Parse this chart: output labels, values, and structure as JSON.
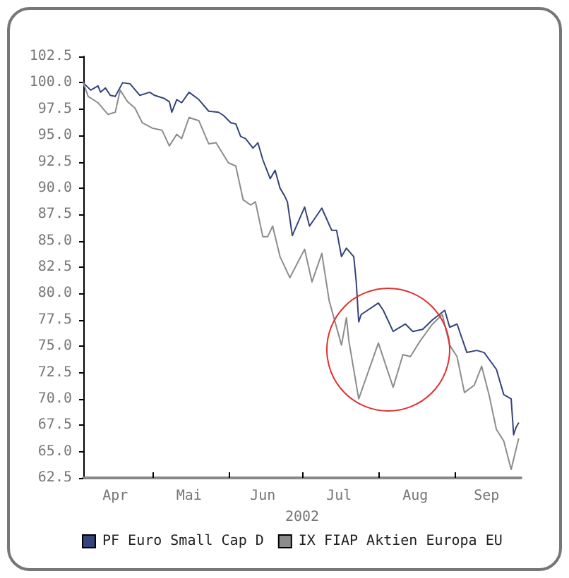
{
  "chart_data": {
    "type": "line",
    "xlabel": "2002",
    "x": [
      "2002-04-03",
      "2002-04-06",
      "2002-04-09",
      "2002-04-10",
      "2002-04-12",
      "2002-04-14",
      "2002-04-16",
      "2002-04-19",
      "2002-04-22",
      "2002-04-26",
      "2002-04-30",
      "2002-05-02",
      "2002-05-06",
      "2002-05-08",
      "2002-05-09",
      "2002-05-11",
      "2002-05-13",
      "2002-05-16",
      "2002-05-20",
      "2002-05-24",
      "2002-05-28",
      "2002-05-30",
      "2002-06-02",
      "2002-06-04",
      "2002-06-06",
      "2002-06-08",
      "2002-06-11",
      "2002-06-13",
      "2002-06-15",
      "2002-06-18",
      "2002-06-20",
      "2002-06-22",
      "2002-06-24",
      "2002-06-25",
      "2002-06-27",
      "2002-07-02",
      "2002-07-04",
      "2002-07-09",
      "2002-07-13",
      "2002-07-15",
      "2002-07-17",
      "2002-07-19",
      "2002-07-22",
      "2002-07-23",
      "2002-07-24",
      "2002-07-25",
      "2002-08-01",
      "2002-08-03",
      "2002-08-07",
      "2002-08-12",
      "2002-08-15",
      "2002-08-19",
      "2002-08-23",
      "2002-08-28",
      "2002-08-30",
      "2002-09-02",
      "2002-09-06",
      "2002-09-10",
      "2002-09-13",
      "2002-09-18",
      "2002-09-21",
      "2002-09-24",
      "2002-09-25",
      "2002-09-26",
      "2002-09-27"
    ],
    "series": [
      {
        "name": "PF Euro Small Cap D",
        "color": "#34447a",
        "values": [
          100.0,
          99.3,
          99.7,
          99.1,
          99.5,
          98.8,
          98.7,
          100.0,
          99.9,
          98.8,
          99.1,
          98.8,
          98.5,
          98.2,
          97.2,
          98.4,
          98.1,
          99.1,
          98.4,
          97.3,
          97.2,
          96.9,
          96.2,
          96.1,
          94.9,
          94.7,
          93.8,
          94.3,
          92.7,
          90.9,
          91.7,
          90.0,
          89.2,
          88.7,
          85.5,
          88.2,
          86.4,
          88.1,
          86.0,
          86.0,
          83.5,
          84.3,
          83.5,
          81.1,
          77.3,
          78.0,
          79.1,
          78.4,
          76.4,
          77.1,
          76.4,
          76.6,
          77.5,
          78.4,
          76.8,
          77.1,
          74.4,
          74.6,
          74.4,
          72.8,
          70.4,
          70.0,
          66.6,
          67.3,
          67.7
        ]
      },
      {
        "name": "IX FIAP Aktien Europa EU",
        "color": "#8c8c8c",
        "x": [
          "2002-04-03",
          "2002-04-05",
          "2002-04-09",
          "2002-04-13",
          "2002-04-16",
          "2002-04-18",
          "2002-04-21",
          "2002-04-24",
          "2002-04-27",
          "2002-05-01",
          "2002-05-05",
          "2002-05-08",
          "2002-05-11",
          "2002-05-13",
          "2002-05-16",
          "2002-05-20",
          "2002-05-24",
          "2002-05-27",
          "2002-06-01",
          "2002-06-04",
          "2002-06-07",
          "2002-06-10",
          "2002-06-12",
          "2002-06-15",
          "2002-06-17",
          "2002-06-19",
          "2002-06-22",
          "2002-06-26",
          "2002-07-02",
          "2002-07-05",
          "2002-07-09",
          "2002-07-12",
          "2002-07-17",
          "2002-07-19",
          "2002-07-20",
          "2002-07-24",
          "2002-08-01",
          "2002-08-07",
          "2002-08-11",
          "2002-08-14",
          "2002-08-18",
          "2002-08-23",
          "2002-08-27",
          "2002-08-30",
          "2002-09-02",
          "2002-09-05",
          "2002-09-09",
          "2002-09-12",
          "2002-09-15",
          "2002-09-18",
          "2002-09-21",
          "2002-09-24",
          "2002-09-27"
        ],
        "values": [
          100.0,
          98.7,
          98.1,
          97.0,
          97.2,
          99.3,
          98.2,
          97.6,
          96.2,
          95.7,
          95.5,
          94.0,
          95.1,
          94.7,
          96.7,
          96.4,
          94.2,
          94.3,
          92.4,
          92.1,
          88.9,
          88.4,
          88.7,
          85.4,
          85.4,
          86.4,
          83.5,
          81.5,
          84.2,
          81.1,
          83.8,
          79.3,
          75.1,
          77.7,
          75.5,
          70.0,
          75.3,
          71.1,
          74.2,
          74.0,
          75.5,
          77.1,
          78.0,
          75.1,
          74.0,
          70.6,
          71.3,
          73.1,
          70.4,
          67.1,
          66.0,
          63.3,
          66.2
        ]
      }
    ],
    "xlim": [
      "2002-04-03",
      "2002-09-28"
    ],
    "xticks": [
      {
        "value": "2002-05-01",
        "label": null
      },
      {
        "value": "2002-06-01",
        "label": null
      },
      {
        "value": "2002-07-01",
        "label": null
      },
      {
        "value": "2002-08-01",
        "label": null
      },
      {
        "value": "2002-09-01",
        "label": null
      },
      {
        "value": "2002-04-16",
        "label": "Apr"
      },
      {
        "value": "2002-05-16",
        "label": "Mai"
      },
      {
        "value": "2002-06-15",
        "label": "Jun"
      },
      {
        "value": "2002-07-16",
        "label": "Jul"
      },
      {
        "value": "2002-08-16",
        "label": "Aug"
      },
      {
        "value": "2002-09-14",
        "label": "Sep"
      }
    ],
    "ylim": [
      62.5,
      102.5
    ],
    "yticks": [
      62.5,
      {
        "value": 65,
        "label": "65.0"
      },
      67.5,
      {
        "value": 70,
        "label": "70.0"
      },
      72.5,
      {
        "value": 75,
        "label": "75.0"
      },
      77.5,
      {
        "value": 80,
        "label": "80.0"
      },
      82.5,
      {
        "value": 85,
        "label": "85.0"
      },
      87.5,
      {
        "value": 90,
        "label": "90.0"
      },
      92.5,
      {
        "value": 95,
        "label": "95.0"
      },
      97.5,
      {
        "value": 100,
        "label": "100.0"
      },
      102.5
    ],
    "grid": false,
    "legend": "bottom",
    "marker": "none",
    "line_style": "solid"
  }
}
